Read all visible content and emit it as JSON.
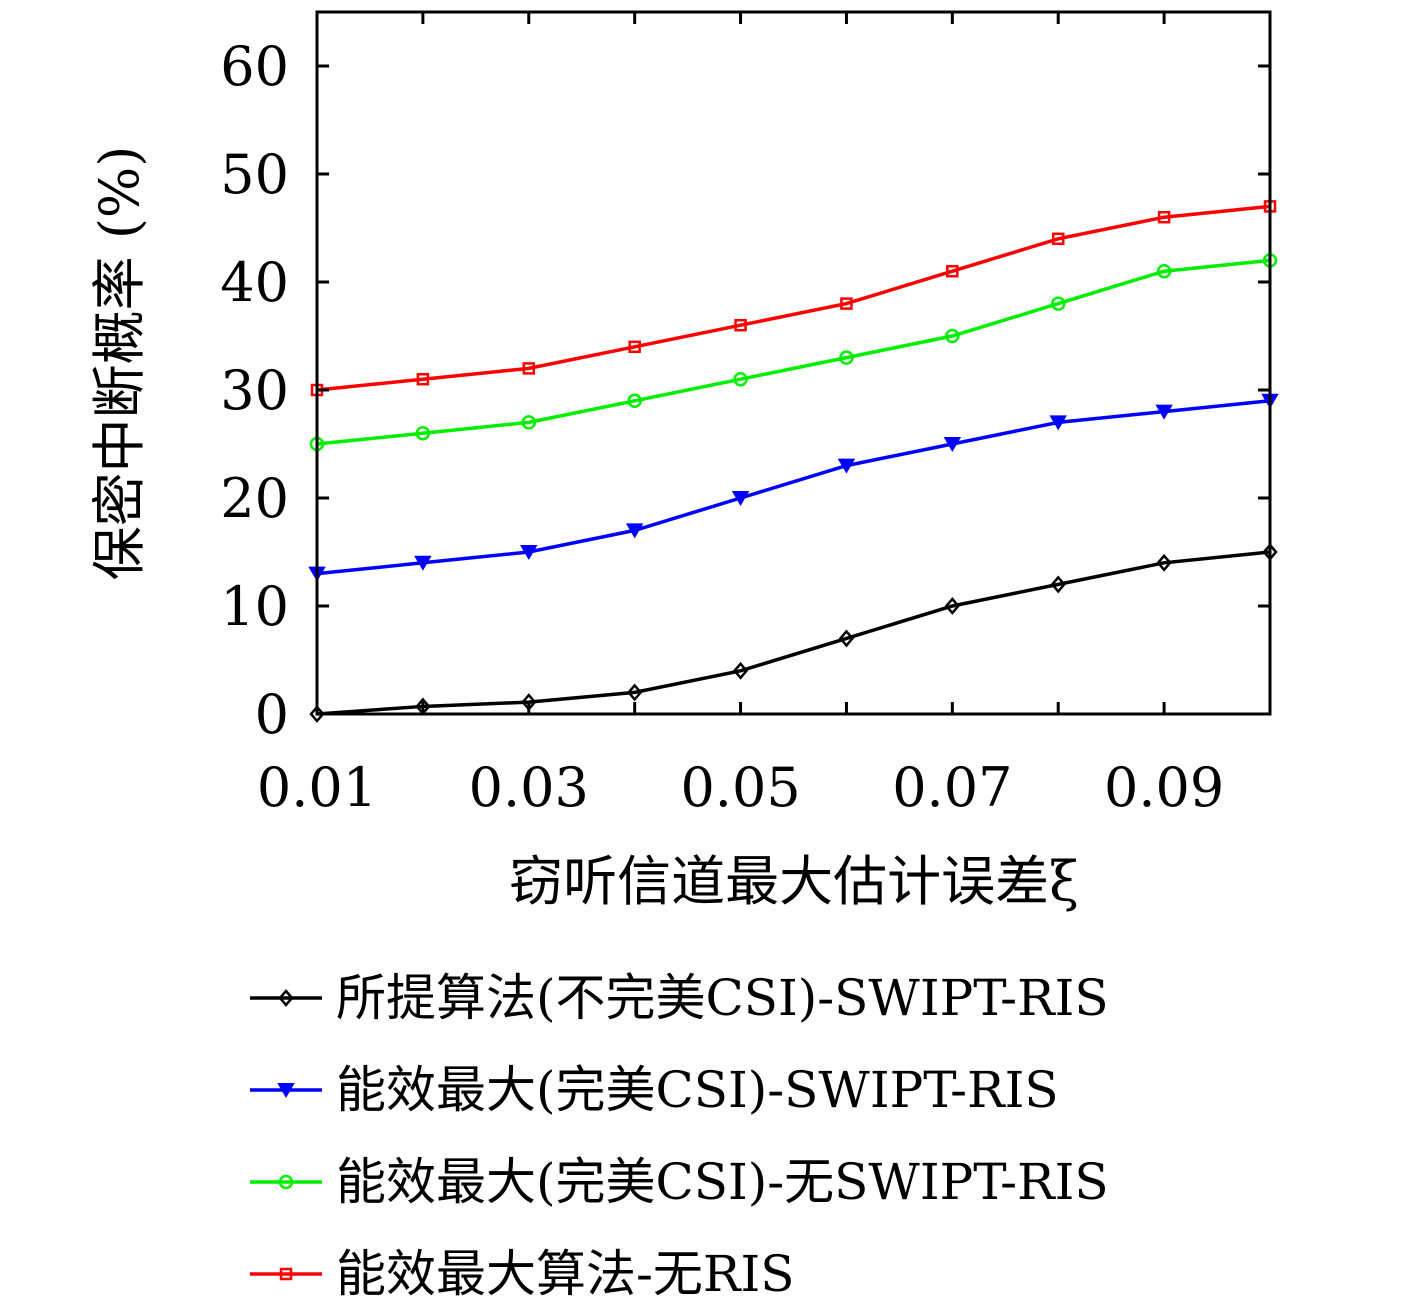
{
  "chart_data": {
    "type": "line",
    "xlabel": "窃听信道最大估计误差ξ",
    "ylabel": "保密中断概率 (%)",
    "x": [
      0.01,
      0.02,
      0.03,
      0.04,
      0.05,
      0.06,
      0.07,
      0.08,
      0.09,
      0.1
    ],
    "xticks": [
      "0.01",
      "0.03",
      "0.05",
      "0.07",
      "0.09"
    ],
    "xtick_values": [
      0.01,
      0.03,
      0.05,
      0.07,
      0.09
    ],
    "yticks": [
      "0",
      "10",
      "20",
      "30",
      "40",
      "50",
      "60"
    ],
    "ytick_values": [
      0,
      10,
      20,
      30,
      40,
      50,
      60
    ],
    "xlim": [
      0.01,
      0.1
    ],
    "ylim": [
      0,
      65
    ],
    "grid": false,
    "legend_position": "bottom",
    "series": [
      {
        "name": "所提算法(不完美CSI)-SWIPT-RIS",
        "color": "#000000",
        "marker": "diamond",
        "values": [
          0,
          0.7,
          1.1,
          2,
          4,
          7,
          10,
          12,
          14,
          15
        ]
      },
      {
        "name": "能效最大(完美CSI)-SWIPT-RIS",
        "color": "#0000ff",
        "marker": "triangle-down",
        "values": [
          13,
          14,
          15,
          17,
          20,
          23,
          25,
          27,
          28,
          29
        ]
      },
      {
        "name": "能效最大(完美CSI)-无SWIPT-RIS",
        "color": "#00ee00",
        "marker": "circle",
        "values": [
          25,
          26,
          27,
          29,
          31,
          33,
          35,
          38,
          41,
          42
        ]
      },
      {
        "name": "能效最大算法-无RIS",
        "color": "#ff0000",
        "marker": "square",
        "values": [
          30,
          31,
          32,
          34,
          36,
          38,
          41,
          44,
          46,
          47
        ]
      }
    ]
  }
}
